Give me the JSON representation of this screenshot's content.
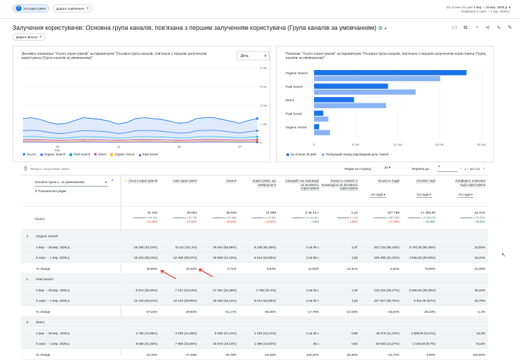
{
  "topbar": {
    "segment_label": "Усі користувачі",
    "segment_icon": "Y",
    "compare_label": "Додати порівняння",
    "date_prefix": "За останні 28 днів",
    "date_range": "2 вер. – 29 вер. 2026 р.",
    "compare_range": "Порівняно 5 серп. – 1 вер. 2026 р."
  },
  "page": {
    "title": "Залучення користувачів: Основна група каналів, пов'язана з першим залученням користувача (Група каналів за умовчанням)",
    "filter_label": "Додати фільтр"
  },
  "line_chart": {
    "title": "Динаміка показника \"Усього користувачів\" за параметром \"Основна група каналів, пов'язана з першим залученням користувача (Група каналів за умовчанням)\"",
    "dropdown": "День",
    "y_ticks": [
      "4 тис.",
      "3 тис.",
      "2 тис.",
      "1 тис.",
      "0"
    ],
    "x_ticks": [
      {
        "label": "06",
        "sub": "вер."
      },
      {
        "label": "13",
        "sub": ""
      },
      {
        "label": "20",
        "sub": ""
      },
      {
        "label": "27",
        "sub": ""
      }
    ],
    "legend": [
      {
        "name": "Усього",
        "color": "#1a73e8",
        "shape": "diamond"
      },
      {
        "name": "Organic Search",
        "color": "#4285f4",
        "shape": "dot"
      },
      {
        "name": "Paid Search",
        "color": "#12b5cb",
        "shape": "square"
      },
      {
        "name": "Direct",
        "color": "#e52592",
        "shape": "diamond"
      },
      {
        "name": "Organic Social",
        "color": "#f9ab00",
        "shape": "dot"
      },
      {
        "name": "Paid Social",
        "color": "#673ab7",
        "shape": "triangle"
      }
    ]
  },
  "bar_chart": {
    "title": "Показник \"Усього користувачів\" за параметром \"Основна група каналів, пов'язана з першим залученням користувача (Група каналів за умовчанням)\"",
    "x_ticks": [
      "0",
      "5 тис.",
      "10 тис.",
      "15 тис.",
      "20 тис."
    ],
    "legend_current": "За останні 28 днів",
    "legend_previous": "Попередній період (відповідний день тижня)"
  },
  "chart_data": [
    {
      "type": "line",
      "x_range": [
        "2 вер. 2026",
        "29 вер. 2026"
      ],
      "ylim": [
        0,
        4000
      ],
      "grid": true,
      "series": [
        {
          "name": "Усього",
          "values": [
            1300,
            1350,
            1250,
            1100,
            1000,
            1050,
            1200,
            1350,
            1300,
            1250,
            1150,
            1000,
            1100,
            1300,
            1350,
            1300,
            1250,
            1150,
            1050,
            1100,
            1300,
            1350,
            1350,
            1250,
            1150,
            1050,
            1200,
            1300
          ]
        },
        {
          "name": "Organic Search",
          "values": [
            650,
            680,
            640,
            560,
            500,
            520,
            600,
            660,
            640,
            620,
            570,
            500,
            550,
            650,
            670,
            650,
            620,
            570,
            520,
            540,
            650,
            670,
            680,
            630,
            580,
            520,
            600,
            650
          ]
        },
        {
          "name": "Paid Search",
          "values": [
            330,
            350,
            320,
            280,
            250,
            260,
            300,
            340,
            330,
            310,
            290,
            250,
            270,
            330,
            340,
            330,
            320,
            290,
            260,
            270,
            330,
            340,
            340,
            320,
            300,
            260,
            300,
            330
          ]
        },
        {
          "name": "Direct",
          "values": [
            170,
            180,
            170,
            150,
            140,
            150,
            160,
            180,
            170,
            160,
            150,
            140,
            150,
            170,
            180,
            170,
            160,
            150,
            140,
            150,
            170,
            180,
            180,
            170,
            160,
            140,
            160,
            170
          ]
        },
        {
          "name": "Organic Social",
          "values": [
            110,
            115,
            110,
            100,
            90,
            95,
            105,
            115,
            110,
            105,
            100,
            90,
            95,
            110,
            115,
            110,
            105,
            100,
            90,
            95,
            110,
            115,
            115,
            110,
            105,
            90,
            105,
            110
          ]
        },
        {
          "name": "Paid Social",
          "values": [
            40,
            45,
            40,
            35,
            30,
            35,
            40,
            45,
            40,
            40,
            35,
            30,
            35,
            40,
            45,
            40,
            40,
            35,
            30,
            35,
            40,
            45,
            45,
            40,
            40,
            30,
            40,
            40
          ]
        }
      ]
    },
    {
      "type": "bar",
      "orientation": "horizontal",
      "categories": [
        "Organic Search",
        "Paid Search",
        "Direct",
        "Paid Social",
        "Organic Social"
      ],
      "xlim": [
        0,
        20000
      ],
      "series": [
        {
          "name": "За останні 28 днів",
          "values": [
            18169,
            8814,
            4765,
            1100,
            600
          ]
        },
        {
          "name": "Попередній період (відповідний день тижня)",
          "values": [
            15034,
            12110,
            8580,
            1700,
            1900
          ]
        }
      ]
    }
  ],
  "table": {
    "search_placeholder": "Введіть пошуковий запит...",
    "rows_per_page_label": "Рядків на сторінці:",
    "rows_per_page": "10",
    "goto_label": "Перейти до:",
    "goto_value": "1",
    "pagination": "1 – 10 з 11",
    "dimension_selector": "Основна група к...за умовчанням)",
    "show_all_rows": "Показати всі рядки",
    "total_label": "Усього",
    "conv_selector": "Усі події",
    "key_event_selector": "Усі події",
    "rate_selector": "Усі події",
    "headers": [
      "Усього користувачів",
      "Нові користувачі",
      "Сеанси",
      "Користувачі, що повернулися",
      "Середній час взаємодії на активного користувача",
      "Кількість сеансів із взаємодією на активного користувача",
      "Кількість подій",
      "Основні події",
      "Коефіцієнт ключової події користувача"
    ],
    "totals": [
      {
        "v": "34 140",
        "c": "порівняно з 39 310",
        "d": "↓ 13,15%",
        "cls": "red"
      },
      {
        "v": "29 053",
        "c": "порівняно з 33 799",
        "d": "↓ 14,04%",
        "cls": "red"
      },
      {
        "v": "65 816",
        "c": "порівняно з 81 569",
        "d": "↓ 19,31%",
        "cls": "red"
      },
      {
        "v": "11 599",
        "c": "порівняно з 13 561",
        "d": "↓ 14,51%",
        "cls": "red"
      },
      {
        "v": "2 хв 13 с",
        "c": "порівняно з 2 хв 08 с",
        "d": "↑ 3,9%",
        "cls": "grn"
      },
      {
        "v": "1,22",
        "c": "порівняно з 1,24",
        "d": "↓ 1,53%",
        "cls": "red"
      },
      {
        "v": "427 798",
        "c": "порівняно з 587 693",
        "d": "↓ 27,23%",
        "cls": "red"
      },
      {
        "v": "17 352,00",
        "c": "порівняно з 15 824,00",
        "d": "↑ 10,25%",
        "cls": "grn"
      },
      {
        "v": "24,11%",
        "c": "порівняно з 20,33%",
        "d": "↑ 18,63%",
        "cls": "grn"
      }
    ],
    "groups": [
      {
        "num": "1",
        "name": "Organic Search",
        "rows": [
          {
            "label": "2 вер. – 29 вер. 2026 р.",
            "cells": [
              "18 169 (53,22%)",
              "15 427 (53,1%)",
              "36 844 (55,98%)",
              "6 435 (55,48%)",
              "2 хв 39 с",
              "1,37",
              "237 122 (55,43%)",
              "8 704,00 (50,45%)",
              "22,56%"
            ]
          },
          {
            "label": "5 серп. – 1 вер. 2026 р.",
            "cells": [
              "15 034 (38,24%)",
              "12 496 (36,97%)",
              "35 568 (43,33%)",
              "5 913 (43,58%)",
              "2 хв 59 с",
              "1,55",
              "248 395 (42,23%)",
              "4 836,00 (30,59%)",
              "18,43%"
            ]
          },
          {
            "label": "% change",
            "cells": [
              "20,85%",
              "23,46%",
              "0,71%",
              "8,83%",
              "-11,05%",
              "-11,31%",
              "-4,54%",
              "79,98%",
              "22,38%"
            ]
          }
        ]
      },
      {
        "num": "2",
        "name": "Paid Search",
        "rows": [
          {
            "label": "2 вер. – 29 вер. 2026 р.",
            "cells": [
              "8 814 (25,82%)",
              "7 121 (24,51%)",
              "17 352 (26,36%)",
              "3 758 (32,4%)",
              "2 хв 03 с",
              "1,32",
              "125 222 (29,27%)",
              "6 565,00 (38,05%)",
              "35,32%"
            ]
          },
          {
            "label": "5 серп. – 1 вер. 2026 р.",
            "cells": [
              "12 110 (30,81%)",
              "10 122 (29,95%)",
              "29 493 (36,12%)",
              "5 814 (42,85%)",
              "2 хв 30 с",
              "1,50",
              "227 827 (38,76%)",
              "8 911,00 (57%)",
              "35,75%"
            ]
          },
          {
            "label": "% change",
            "cells": [
              "-27,22%",
              "-29,65%",
              "-41,17%",
              "-35,36%",
              "-17,75%",
              "-12,08%",
              "-45,04%",
              "-26,33%",
              "-1,2%"
            ]
          }
        ]
      },
      {
        "num": "3",
        "name": "Direct",
        "rows": [
          {
            "label": "2 вер. – 29 вер. 2026 р.",
            "cells": [
              "4 765 (13,96%)",
              "4 180 (14,39%)",
              "9 285 (14,11%)",
              "1 184 (10,21%)",
              "1 хв 35 с",
              "0,98",
              "48 070 (11,24%)",
              "1 589,00 (9,21%)",
              "16,3%"
            ]
          },
          {
            "label": "5 серп. – 1 вер. 2026 р.",
            "cells": [
              "8 580 (21,83%)",
              "7 959 (23,55%)",
              "15 679 (19,14%)",
              "1 468 (10,82%)",
              "46 с",
              "0,64",
              "83 920 (14,27%)",
              "1 529,00 (9,7%)",
              "8,12%"
            ]
          },
          {
            "label": "% change",
            "cells": [
              "-44,46%",
              "-47,48%",
              "-40,78%",
              "-19,35%",
              "106,42%",
              "54,36%",
              "-42,72%",
              "3,99%",
              "100,66%"
            ]
          }
        ]
      }
    ]
  }
}
